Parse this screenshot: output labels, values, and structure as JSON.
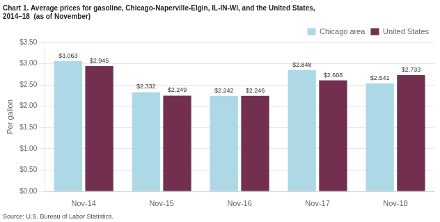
{
  "chart_data": {
    "type": "bar",
    "title": [
      "Chart 1. Average prices for gasoline, Chicago-Naperville-Elgin, IL-IN-WI, and the United States,",
      "2014–18  (as of November)"
    ],
    "ylabel": "Per gallon",
    "source": "Source: U.S. Bureau of Labor Statistics.",
    "categories": [
      "Nov-14",
      "Nov-15",
      "Nov-16",
      "Nov-17",
      "Nov-18"
    ],
    "series": [
      {
        "name": "Chicago area",
        "color": "#ADD8E6",
        "values": [
          3.063,
          2.332,
          2.242,
          2.848,
          2.541
        ],
        "value_labels": [
          "$3.063",
          "$2.332",
          "$2.242",
          "$2.848",
          "$2.541"
        ]
      },
      {
        "name": "United States",
        "color": "#722F4F",
        "values": [
          2.945,
          2.249,
          2.246,
          2.608,
          2.733
        ],
        "value_labels": [
          "$2.945",
          "$2.249",
          "$2.246",
          "$2.608",
          "$2.733"
        ]
      }
    ],
    "ylim": [
      0.0,
      3.5
    ],
    "yticks": [
      {
        "value": 0.0,
        "label": "$0.00"
      },
      {
        "value": 0.5,
        "label": "$0.50"
      },
      {
        "value": 1.0,
        "label": "$1.00"
      },
      {
        "value": 1.5,
        "label": "$1.50"
      },
      {
        "value": 2.0,
        "label": "$2.00"
      },
      {
        "value": 2.5,
        "label": "$2.50"
      },
      {
        "value": 3.0,
        "label": "$3.00"
      },
      {
        "value": 3.5,
        "label": "$3.50"
      }
    ],
    "grid": true,
    "legend": "upper right",
    "data_labels": true
  }
}
